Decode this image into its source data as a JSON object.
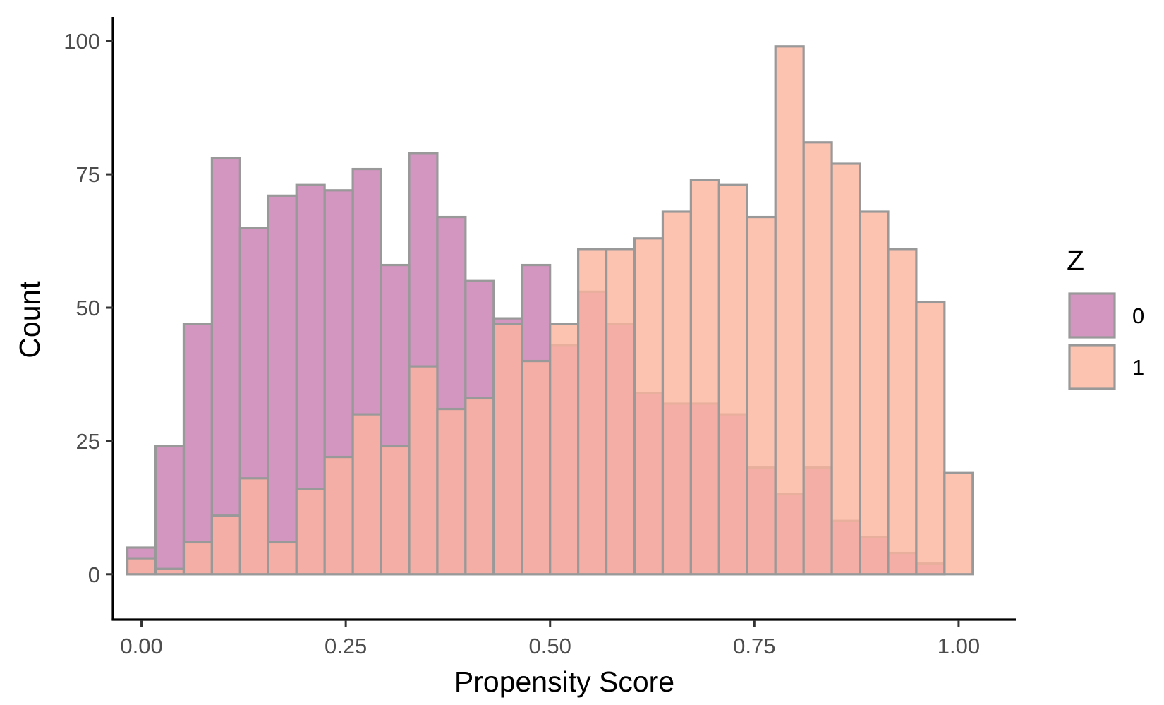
{
  "chart_data": {
    "type": "bar",
    "subtype": "overlaid-histogram",
    "title": "",
    "xlabel": "Propensity Score",
    "ylabel": "Count",
    "xlim": [
      -0.035,
      1.07
    ],
    "ylim": [
      -8.5,
      104
    ],
    "x_ticks": [
      {
        "value": 0.0,
        "label": "0.00"
      },
      {
        "value": 0.25,
        "label": "0.25"
      },
      {
        "value": 0.5,
        "label": "0.50"
      },
      {
        "value": 0.75,
        "label": "0.75"
      },
      {
        "value": 1.0,
        "label": "1.00"
      }
    ],
    "y_ticks": [
      {
        "value": 0,
        "label": "0"
      },
      {
        "value": 25,
        "label": "25"
      },
      {
        "value": 50,
        "label": "50"
      },
      {
        "value": 75,
        "label": "75"
      },
      {
        "value": 100,
        "label": "100"
      }
    ],
    "bin_width": 0.03448,
    "bin_start": -0.01724,
    "grid": false,
    "legend": {
      "title": "Z",
      "position": "right",
      "entries": [
        "0",
        "1"
      ]
    },
    "series": [
      {
        "name": "0",
        "color": "#C77CB0",
        "opacity": 0.8,
        "values": [
          5,
          24,
          47,
          78,
          65,
          71,
          73,
          72,
          76,
          58,
          79,
          67,
          55,
          48,
          58,
          43,
          53,
          47,
          34,
          32,
          32,
          30,
          20,
          15,
          20,
          10,
          7,
          4,
          2,
          0,
          0
        ]
      },
      {
        "name": "1",
        "color": "#FDB49E",
        "opacity": 0.8,
        "values": [
          3,
          1,
          6,
          11,
          18,
          6,
          16,
          22,
          30,
          24,
          39,
          31,
          33,
          47,
          40,
          47,
          61,
          61,
          63,
          68,
          74,
          73,
          67,
          99,
          81,
          77,
          68,
          61,
          51,
          19,
          0
        ]
      }
    ],
    "bar_outline_color": "#999999",
    "axis_color": "#000000"
  }
}
